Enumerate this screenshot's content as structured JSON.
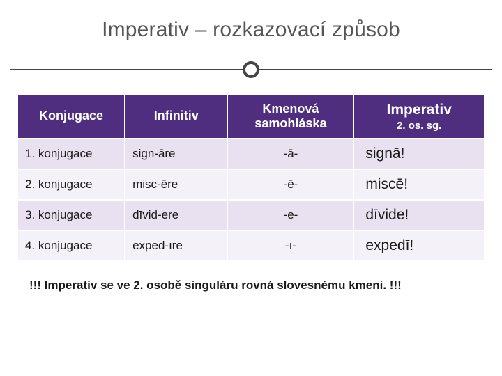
{
  "title": "Imperativ – rozkazovací způsob",
  "colors": {
    "header_bg": "#4f2d7f",
    "header_fg": "#ffffff",
    "row_odd_bg": "#e9e1ef",
    "row_even_bg": "#f5f1f8",
    "text": "#1a1a1a",
    "rule": "#444444",
    "title_color": "#555555"
  },
  "table": {
    "columns": [
      {
        "main": "Konjugace",
        "sub": "",
        "align": "center"
      },
      {
        "main": "Infinitiv",
        "sub": "",
        "align": "center"
      },
      {
        "main": "Kmenová samohláska",
        "sub": "",
        "align": "center"
      },
      {
        "main": "Imperativ",
        "sub": "2. os. sg.",
        "align": "center",
        "big": true
      }
    ],
    "rows": [
      {
        "konjugace": "1. konjugace",
        "infinitiv": "sign-āre",
        "vowel": "-ā-",
        "imperativ": "signā!"
      },
      {
        "konjugace": "2. konjugace",
        "infinitiv": "misc-ēre",
        "vowel": "-ē-",
        "imperativ": "miscē!"
      },
      {
        "konjugace": "3. konjugace",
        "infinitiv": "dīvid-ere",
        "vowel": "-e-",
        "imperativ": "dīvide!"
      },
      {
        "konjugace": "4. konjugace",
        "infinitiv": "exped-īre",
        "vowel": "-ī-",
        "imperativ": "expedī!"
      }
    ],
    "col_widths_pct": [
      23,
      22,
      27,
      28
    ],
    "header_fontsize_pt": 14,
    "body_fontsize_pt": 13,
    "imperative_fontsize_pt": 16
  },
  "footnote": "!!! Imperativ se ve 2. osobě singuláru rovná slovesnému kmeni. !!!"
}
